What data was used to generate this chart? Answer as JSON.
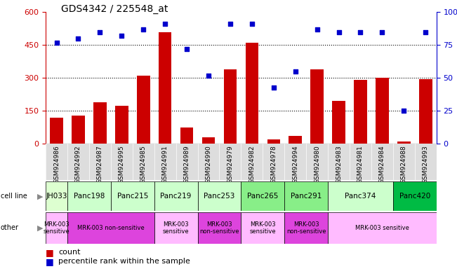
{
  "title": "GDS4342 / 225548_at",
  "samples": [
    "GSM924986",
    "GSM924992",
    "GSM924987",
    "GSM924995",
    "GSM924985",
    "GSM924991",
    "GSM924989",
    "GSM924990",
    "GSM924979",
    "GSM924982",
    "GSM924978",
    "GSM924994",
    "GSM924980",
    "GSM924983",
    "GSM924981",
    "GSM924984",
    "GSM924988",
    "GSM924993"
  ],
  "counts": [
    120,
    130,
    190,
    175,
    310,
    510,
    75,
    30,
    340,
    460,
    20,
    35,
    340,
    195,
    290,
    300,
    10,
    295
  ],
  "percentiles": [
    77,
    80,
    85,
    82,
    87,
    91,
    72,
    52,
    91,
    91,
    43,
    55,
    87,
    85,
    85,
    85,
    25,
    85
  ],
  "cell_lines": [
    {
      "name": "JH033",
      "start": 0,
      "end": 1,
      "color": "#ddffd0"
    },
    {
      "name": "Panc198",
      "start": 1,
      "end": 3,
      "color": "#ccffcc"
    },
    {
      "name": "Panc215",
      "start": 3,
      "end": 5,
      "color": "#ccffcc"
    },
    {
      "name": "Panc219",
      "start": 5,
      "end": 7,
      "color": "#ccffcc"
    },
    {
      "name": "Panc253",
      "start": 7,
      "end": 9,
      "color": "#ccffcc"
    },
    {
      "name": "Panc265",
      "start": 9,
      "end": 11,
      "color": "#88ee88"
    },
    {
      "name": "Panc291",
      "start": 11,
      "end": 13,
      "color": "#88ee88"
    },
    {
      "name": "Panc374",
      "start": 13,
      "end": 16,
      "color": "#ccffcc"
    },
    {
      "name": "Panc420",
      "start": 16,
      "end": 18,
      "color": "#00bb44"
    }
  ],
  "other_groups": [
    {
      "label": "MRK-003\nsensitive",
      "start": 0,
      "end": 1,
      "color": "#ffbbff"
    },
    {
      "label": "MRK-003 non-sensitive",
      "start": 1,
      "end": 5,
      "color": "#dd44dd"
    },
    {
      "label": "MRK-003\nsensitive",
      "start": 5,
      "end": 7,
      "color": "#ffbbff"
    },
    {
      "label": "MRK-003\nnon-sensitive",
      "start": 7,
      "end": 9,
      "color": "#dd44dd"
    },
    {
      "label": "MRK-003\nsensitive",
      "start": 9,
      "end": 11,
      "color": "#ffbbff"
    },
    {
      "label": "MRK-003\nnon-sensitive",
      "start": 11,
      "end": 13,
      "color": "#dd44dd"
    },
    {
      "label": "MRK-003 sensitive",
      "start": 13,
      "end": 18,
      "color": "#ffbbff"
    }
  ],
  "ylim_left": [
    0,
    600
  ],
  "ylim_right": [
    0,
    100
  ],
  "yticks_left": [
    0,
    150,
    300,
    450,
    600
  ],
  "yticks_right": [
    0,
    25,
    50,
    75,
    100
  ],
  "bar_color": "#cc0000",
  "dot_color": "#0000cc",
  "background_color": "#ffffff",
  "bar_area_bg": "#ffffff",
  "sample_area_bg": "#dddddd",
  "left_axis_color": "#cc0000",
  "right_axis_color": "#0000cc"
}
